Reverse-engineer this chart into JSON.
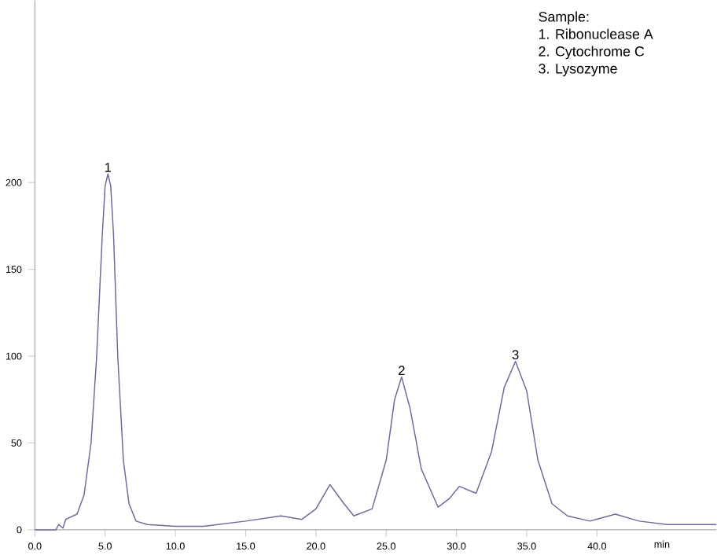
{
  "chart_data": {
    "type": "line",
    "xlabel": "min",
    "x": [
      0,
      1.5,
      1.7,
      2.0,
      2.2,
      3.0,
      3.5,
      4.0,
      4.4,
      4.8,
      5.0,
      5.2,
      5.4,
      5.6,
      5.9,
      6.3,
      6.7,
      7.2,
      8,
      10,
      12,
      15,
      17.5,
      19,
      20,
      21,
      22,
      22.7,
      24,
      25,
      25.6,
      26.1,
      26.7,
      27.5,
      28.7,
      29.5,
      30.2,
      31.4,
      32.5,
      33.4,
      34.2,
      35,
      35.8,
      36.8,
      37.9,
      39.5,
      41.3,
      43,
      45,
      48.5
    ],
    "series": [
      {
        "color": "#6b6b9a",
        "values": [
          0,
          0,
          3,
          1,
          6,
          9,
          20,
          50,
          100,
          170,
          198,
          205,
          198,
          170,
          100,
          40,
          15,
          5,
          3,
          2,
          2,
          5,
          8,
          6,
          12,
          26,
          15,
          8,
          12,
          40,
          75,
          88,
          70,
          35,
          13,
          18,
          25,
          21,
          45,
          82,
          97,
          80,
          40,
          15,
          8,
          5,
          9,
          5,
          3,
          3
        ]
      }
    ],
    "xlim": [
      0,
      48.5
    ],
    "ylim": [
      0,
      305
    ],
    "xticks": [
      {
        "value": 0,
        "label": "0.0"
      },
      {
        "value": 5,
        "label": "5.0"
      },
      {
        "value": 10,
        "label": "10.0"
      },
      {
        "value": 15,
        "label": "15.0"
      },
      {
        "value": 20,
        "label": "20.0"
      },
      {
        "value": 25,
        "label": "25.0"
      },
      {
        "value": 30,
        "label": "30.0"
      },
      {
        "value": 35,
        "label": "35.0"
      },
      {
        "value": 40,
        "label": "40.0"
      }
    ],
    "yticks": [
      0,
      50,
      100,
      150,
      200
    ],
    "annotations": [
      {
        "text": "1",
        "x": 5.2,
        "y": 205
      },
      {
        "text": "2",
        "x": 26.1,
        "y": 88
      },
      {
        "text": "3",
        "x": 34.2,
        "y": 97
      },
      "Sample:",
      "1. Ribonuclease A",
      "2. Cytochrome C",
      "3. Lysozyme"
    ]
  }
}
